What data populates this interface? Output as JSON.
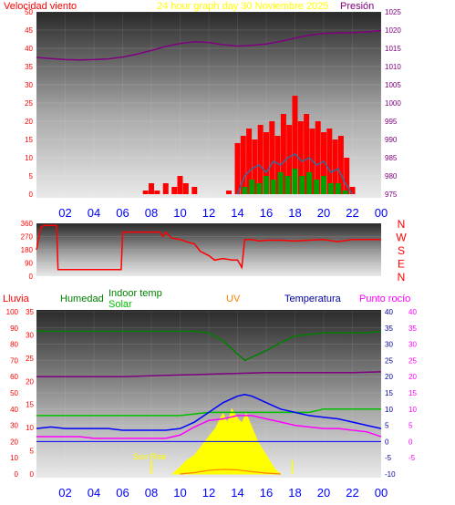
{
  "header": {
    "wind_label": "Velocidad viento",
    "title": "24 hour graph day   30 Noviembre 2025",
    "pressure_label": "Presión"
  },
  "legend": {
    "rain": "Lluvia",
    "humidity": "Humedad",
    "indoor": "Indoor temp",
    "solar": "Solar",
    "uv": "UV",
    "temperature": "Temperatura",
    "dew": "Punto rocío",
    "sunrise": "Sun Rise"
  },
  "colors": {
    "wind": "#ff0000",
    "gust": "#ff0000",
    "wind_avg": "#2f6fa0",
    "wind_green": "#00a000",
    "pressure": "#800080",
    "humidity": "#008000",
    "indoor": "#00c000",
    "temperature": "#0000ff",
    "dew": "#ff00ff",
    "uv": "#ffff00",
    "uv_line": "#ff8000",
    "rain": "#00a000"
  },
  "chart_data": [
    {
      "type": "line",
      "panel": "wind-pressure",
      "x_ticks": [
        "02",
        "04",
        "06",
        "08",
        "10",
        "12",
        "14",
        "16",
        "18",
        "20",
        "22",
        "00"
      ],
      "y_left_ticks": [
        "0",
        "5",
        "10",
        "15",
        "20",
        "25",
        "30",
        "35",
        "40",
        "45",
        "50"
      ],
      "y_left_range": [
        0,
        50
      ],
      "y_right_ticks": [
        "975",
        "980",
        "985",
        "990",
        "995",
        "1000",
        "1005",
        "1010",
        "1015",
        "1020",
        "1025"
      ],
      "y_right_range": [
        975,
        1025
      ],
      "series": [
        {
          "name": "Presión",
          "axis": "right",
          "x": [
            0,
            1,
            2,
            3,
            4,
            5,
            6,
            7,
            8,
            9,
            10,
            11,
            12,
            13,
            14,
            15,
            16,
            17,
            18,
            19,
            20,
            21,
            22,
            23,
            24
          ],
          "values": [
            1012.5,
            1012.2,
            1011.9,
            1011.8,
            1011.9,
            1012.1,
            1012.6,
            1013.4,
            1014.4,
            1015.5,
            1016.3,
            1016.8,
            1016.6,
            1016.0,
            1015.6,
            1015.8,
            1016.2,
            1016.9,
            1017.8,
            1018.6,
            1019.1,
            1019.2,
            1019.3,
            1019.5,
            1019.9
          ]
        },
        {
          "name": "gust",
          "axis": "left",
          "x": [
            7.6,
            8.0,
            8.4,
            9.0,
            9.6,
            10.0,
            10.4,
            11.0,
            13.4,
            14.0,
            14.4,
            14.8,
            15.2,
            15.6,
            16.0,
            16.4,
            16.8,
            17.2,
            17.6,
            18.0,
            18.4,
            18.8,
            19.2,
            19.6,
            20.0,
            20.4,
            20.8,
            21.2,
            21.6,
            22.0
          ],
          "values": [
            1,
            3,
            1,
            3,
            2,
            5,
            3,
            2,
            1,
            14,
            16,
            18,
            15,
            19,
            17,
            20,
            16,
            22,
            19,
            27,
            20,
            22,
            18,
            20,
            17,
            18,
            15,
            16,
            10,
            2
          ]
        },
        {
          "name": "wind-avg",
          "axis": "left",
          "x": [
            14.0,
            14.5,
            15.0,
            15.5,
            16.0,
            16.5,
            17.0,
            17.5,
            18.0,
            18.5,
            19.0,
            19.5,
            20.0,
            20.5,
            21.0,
            21.5,
            22.0
          ],
          "values": [
            0,
            5,
            7,
            8,
            6,
            9,
            8,
            10,
            11,
            9,
            10,
            8,
            9,
            6,
            7,
            3,
            0
          ]
        },
        {
          "name": "wind-green",
          "axis": "left",
          "x": [
            14.0,
            14.5,
            15.0,
            15.5,
            16.0,
            16.5,
            17.0,
            17.5,
            18.0,
            18.5,
            19.0,
            19.5,
            20.0,
            20.5,
            21.0,
            21.5,
            22.0
          ],
          "values": [
            0,
            2,
            4,
            3,
            5,
            4,
            6,
            5,
            7,
            5,
            6,
            4,
            5,
            3,
            3,
            1,
            0
          ]
        }
      ]
    },
    {
      "type": "line",
      "panel": "wind-direction",
      "y_ticks": [
        "0",
        "90",
        "180",
        "270",
        "360"
      ],
      "y_range": [
        0,
        360
      ],
      "compass": [
        "N",
        "W",
        "S",
        "E",
        "N"
      ],
      "series": [
        {
          "name": "direction",
          "x": [
            0.0,
            0.3,
            0.5,
            0.9,
            1.1,
            1.4,
            1.5,
            5.9,
            6.0,
            8.6,
            8.8,
            9.0,
            9.4,
            10.0,
            10.6,
            11.0,
            11.4,
            12.0,
            12.4,
            13.0,
            13.6,
            14.0,
            14.3,
            14.5,
            15.0,
            15.5,
            16.0,
            17.0,
            18.0,
            19.0,
            20.0,
            21.0,
            22.0,
            23.0,
            24.0
          ],
          "values": [
            180,
            330,
            345,
            345,
            345,
            345,
            45,
            45,
            300,
            300,
            270,
            300,
            260,
            250,
            230,
            220,
            170,
            140,
            110,
            120,
            110,
            110,
            60,
            250,
            250,
            240,
            245,
            245,
            240,
            245,
            250,
            235,
            250,
            250,
            250
          ]
        }
      ]
    },
    {
      "type": "line",
      "panel": "temperature-humidity",
      "x_ticks": [
        "02",
        "04",
        "06",
        "08",
        "10",
        "12",
        "14",
        "16",
        "18",
        "20",
        "22",
        "00"
      ],
      "y_rain_ticks": [
        "0",
        "10",
        "20",
        "30",
        "40",
        "50",
        "60",
        "70",
        "80",
        "90",
        "100"
      ],
      "y_rain_range": [
        0,
        100
      ],
      "y_solar_ticks": [
        "0",
        "5",
        "10",
        "15",
        "20",
        "25",
        "30",
        "35"
      ],
      "y_solar_range": [
        0,
        35
      ],
      "y_temp_ticks": [
        "-10",
        "-5",
        "0",
        "5",
        "10",
        "15",
        "20",
        "25",
        "30",
        "35",
        "40"
      ],
      "y_temp_range": [
        -10,
        40
      ],
      "y_dew_ticks": [
        "-5",
        "0",
        "5",
        "10",
        "15",
        "20",
        "25",
        "30",
        "35",
        "40"
      ],
      "series": [
        {
          "name": "Humedad",
          "axis": "rain",
          "x": [
            0,
            1,
            2,
            3,
            4,
            5,
            6,
            7,
            8,
            9,
            10,
            11,
            12,
            13,
            14,
            14.5,
            15,
            16,
            17,
            18,
            19,
            20,
            21,
            22,
            23,
            24
          ],
          "values": [
            88,
            88,
            88,
            88,
            88,
            88,
            88,
            88,
            88,
            88,
            88,
            88,
            87,
            82,
            74,
            70,
            72,
            76,
            81,
            85,
            86,
            87,
            87,
            87,
            87,
            88
          ]
        },
        {
          "name": "Presión-baja",
          "axis": "rain",
          "x": [
            0,
            2,
            4,
            6,
            8,
            10,
            12,
            14,
            16,
            18,
            20,
            22,
            24
          ],
          "values": [
            60,
            60,
            60,
            60,
            60.5,
            61,
            61.5,
            62,
            62.5,
            62.5,
            62.5,
            62.5,
            63
          ]
        },
        {
          "name": "Indoor temp",
          "axis": "temp",
          "x": [
            0,
            2,
            4,
            6,
            8,
            10,
            11,
            12,
            14,
            16,
            18,
            19,
            20,
            22,
            23,
            24
          ],
          "values": [
            8,
            8,
            8,
            8,
            8,
            8,
            8.5,
            9,
            9,
            9,
            9,
            9,
            10,
            10,
            10,
            10
          ]
        },
        {
          "name": "Temperatura",
          "axis": "temp",
          "x": [
            0,
            1,
            2,
            3,
            4,
            5,
            6,
            7,
            8,
            9,
            10,
            11,
            12,
            13,
            14,
            14.5,
            15,
            16,
            17,
            18,
            19,
            20,
            21,
            22,
            23,
            24
          ],
          "values": [
            4,
            4.5,
            4,
            4,
            4,
            4,
            3.5,
            3.5,
            3.5,
            3.5,
            4,
            6,
            9,
            12,
            14,
            14.5,
            14,
            12,
            10,
            9,
            8,
            7.5,
            7,
            6,
            5,
            4
          ]
        },
        {
          "name": "Punto rocío",
          "axis": "temp",
          "x": [
            0,
            1,
            2,
            3,
            4,
            5,
            6,
            7,
            8,
            9,
            10,
            11,
            12,
            13,
            14,
            15,
            16,
            17,
            18,
            19,
            20,
            21,
            22,
            23,
            24
          ],
          "values": [
            1.5,
            1.5,
            1.5,
            1.5,
            1,
            1,
            1,
            1,
            1,
            1,
            2,
            4.5,
            6.5,
            7,
            8,
            8,
            7,
            6,
            5,
            4.5,
            4,
            4,
            3.5,
            3,
            1.5
          ]
        },
        {
          "name": "Solar",
          "axis": "solar",
          "x": [
            9.5,
            10,
            10.5,
            11,
            11.5,
            12,
            12.5,
            12.8,
            13,
            13.3,
            13.6,
            14,
            14.3,
            14.6,
            15,
            15.4,
            15.8,
            16.2,
            16.6,
            17.0
          ],
          "values": [
            0,
            1.5,
            3,
            4,
            6,
            8,
            10,
            12,
            13,
            11,
            14,
            12,
            11,
            13,
            10,
            7,
            5,
            3,
            1,
            0
          ]
        },
        {
          "name": "UV",
          "axis": "solar",
          "x": [
            10,
            11,
            12,
            13,
            14,
            15,
            16,
            17
          ],
          "values": [
            0,
            0.3,
            0.8,
            1,
            0.9,
            0.5,
            0.2,
            0
          ]
        },
        {
          "name": "zero-line",
          "axis": "temp",
          "x": [
            0,
            24
          ],
          "values": [
            0,
            0
          ]
        }
      ],
      "markers": [
        {
          "label": "Sun Rise",
          "x": 8.0
        },
        {
          "label": "",
          "x": 17.8
        }
      ]
    }
  ]
}
